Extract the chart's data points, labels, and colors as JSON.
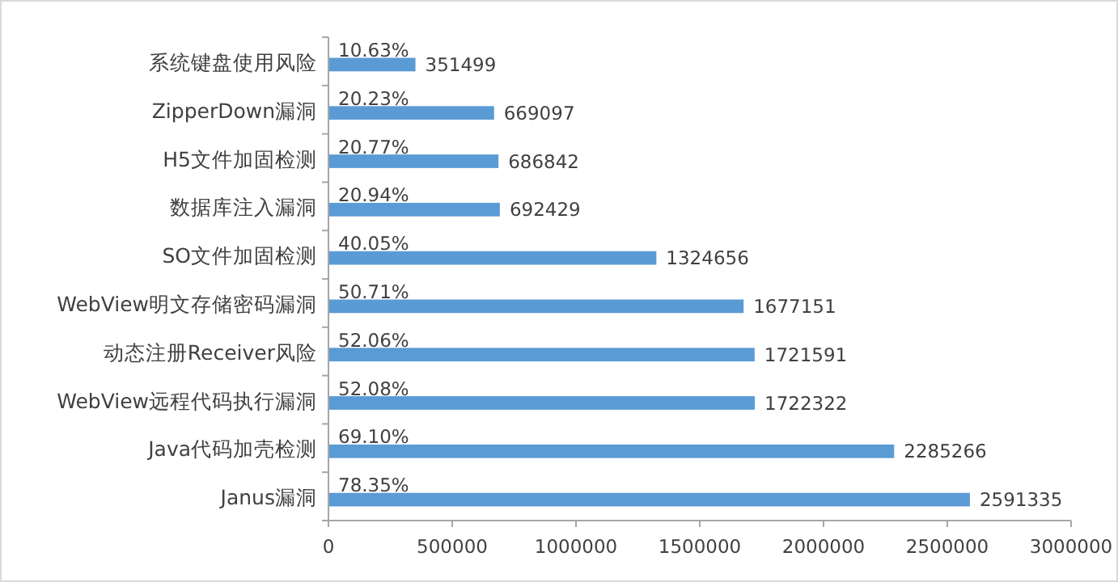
{
  "chart_data": {
    "type": "bar",
    "orientation": "horizontal",
    "categories": [
      "系统键盘使用风险",
      "ZipperDown漏洞",
      "H5文件加固检测",
      "数据库注入漏洞",
      "SO文件加固检测",
      "WebView明文存储密码漏洞",
      "动态注册Receiver风险",
      "WebView远程代码执行漏洞",
      "Java代码加壳检测",
      "Janus漏洞"
    ],
    "values": [
      351499,
      669097,
      686842,
      692429,
      1324656,
      1677151,
      1721591,
      1722322,
      2285266,
      2591335
    ],
    "color": "#5b9bd5",
    "xlim": [
      0,
      3000000
    ],
    "xticks": [
      0,
      500000,
      1000000,
      1500000,
      2000000,
      2500000,
      3000000
    ],
    "data_labels": true,
    "annotations": [
      {
        "text": "10.63%",
        "y": "系统键盘使用风险"
      },
      {
        "text": "20.23%",
        "y": "ZipperDown漏洞"
      },
      {
        "text": "20.77%",
        "y": "H5文件加固检测"
      },
      {
        "text": "20.94%",
        "y": "数据库注入漏洞"
      },
      {
        "text": "40.05%",
        "y": "SO文件加固检测"
      },
      {
        "text": "50.71%",
        "y": "WebView明文存储密码漏洞"
      },
      {
        "text": "52.06%",
        "y": "动态注册Receiver风险"
      },
      {
        "text": "52.08%",
        "y": "WebView远程代码执行漏洞"
      },
      {
        "text": "69.10%",
        "y": "Java代码加壳检测"
      },
      {
        "text": "78.35%",
        "y": "Janus漏洞"
      }
    ]
  }
}
